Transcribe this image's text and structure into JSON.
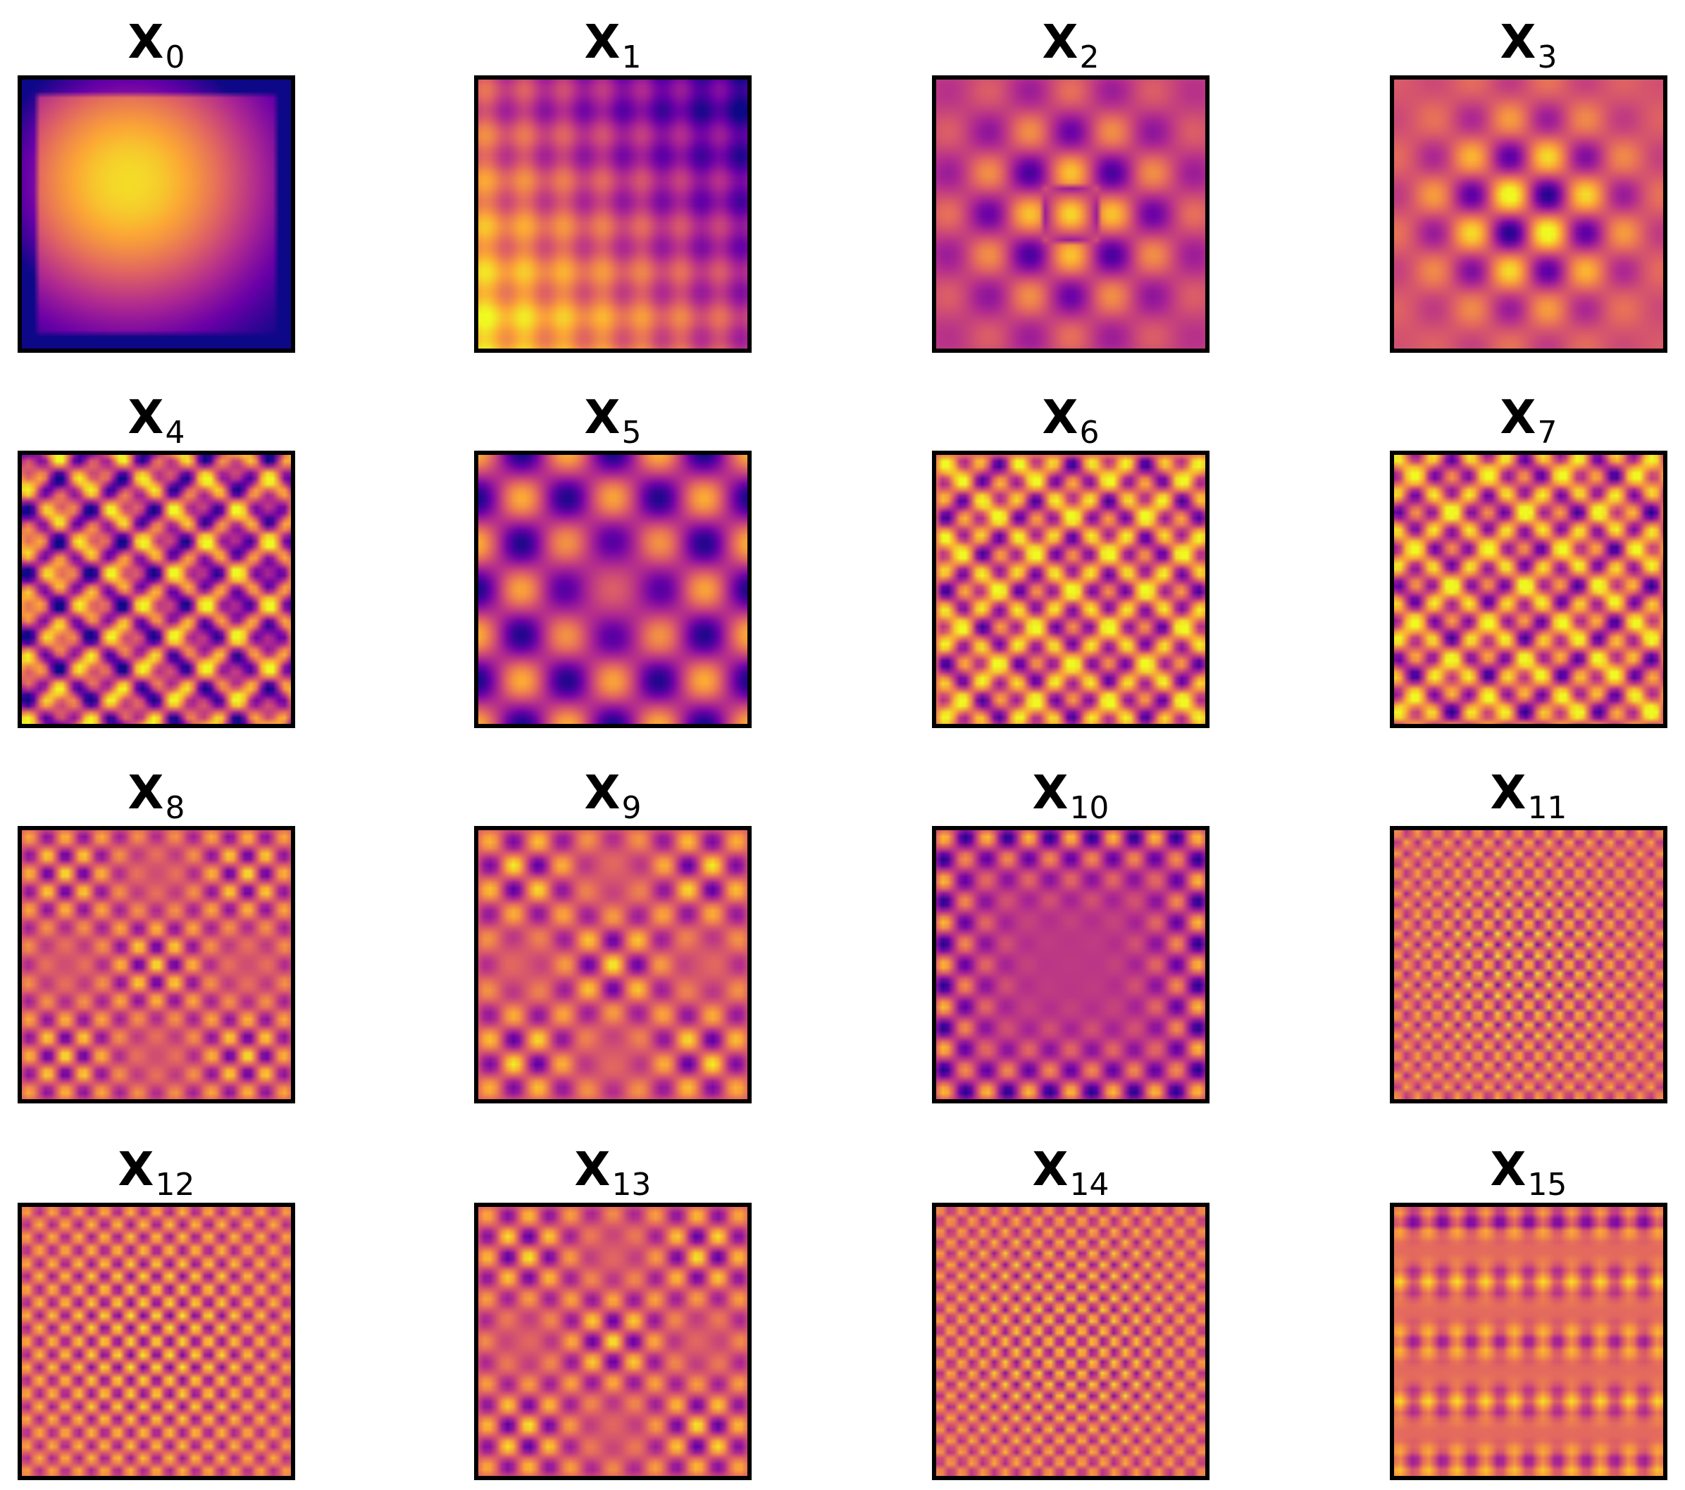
{
  "figure": {
    "colormap": "plasma",
    "colormap_stops": [
      "#0d0887",
      "#6a00a8",
      "#b12a90",
      "#e16462",
      "#fca636",
      "#f0f921"
    ],
    "frame_color": "#000000"
  },
  "chart_data": {
    "type": "heatmap",
    "layout": {
      "rows": 4,
      "cols": 4
    },
    "axes": "off",
    "panels": [
      {
        "title": "X",
        "subscript": "0",
        "pattern": "smooth-blob"
      },
      {
        "title": "X",
        "subscript": "1",
        "pattern": "diagonal-gradient"
      },
      {
        "title": "X",
        "subscript": "2",
        "pattern": "centered-cross"
      },
      {
        "title": "X",
        "subscript": "3",
        "pattern": "centered-quadrupole"
      },
      {
        "title": "X",
        "subscript": "4",
        "pattern": "plaid"
      },
      {
        "title": "X",
        "subscript": "5",
        "pattern": "ring-blobs"
      },
      {
        "title": "X",
        "subscript": "6",
        "pattern": "fine-plaid"
      },
      {
        "title": "X",
        "subscript": "7",
        "pattern": "fine-plaid"
      },
      {
        "title": "X",
        "subscript": "8",
        "pattern": "dot-grid"
      },
      {
        "title": "X",
        "subscript": "9",
        "pattern": "dot-grid"
      },
      {
        "title": "X",
        "subscript": "10",
        "pattern": "edge-dots"
      },
      {
        "title": "X",
        "subscript": "11",
        "pattern": "checkerboard"
      },
      {
        "title": "X",
        "subscript": "12",
        "pattern": "checkerboard"
      },
      {
        "title": "X",
        "subscript": "13",
        "pattern": "dot-grid"
      },
      {
        "title": "X",
        "subscript": "14",
        "pattern": "checkerboard"
      },
      {
        "title": "X",
        "subscript": "15",
        "pattern": "stripes"
      }
    ]
  }
}
